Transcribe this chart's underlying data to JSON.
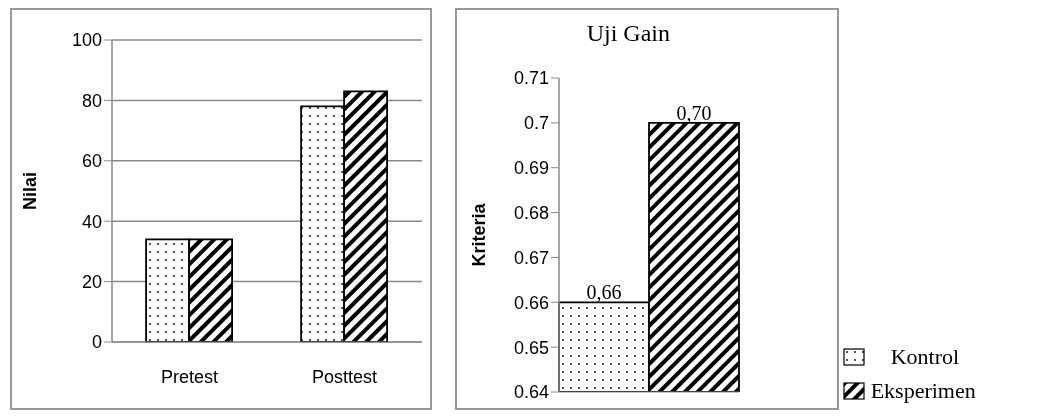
{
  "chart_data": [
    {
      "type": "bar",
      "ylabel": "Nilai",
      "categories": [
        "Pretest",
        "Posttest"
      ],
      "series": [
        {
          "color": "#000000",
          "values": [
            34,
            78
          ]
        },
        {
          "color": "#000000",
          "values": [
            34,
            83
          ]
        }
      ],
      "ylim": [
        0,
        100
      ],
      "yticks": [
        0,
        20,
        40,
        60,
        80,
        100
      ],
      "grid": "y",
      "legend": false
    },
    {
      "type": "bar",
      "title": "Uji Gain",
      "ylabel": "Kriteria",
      "categories": [
        null
      ],
      "series": [
        {
          "name": "Kontrol",
          "color": "#000000",
          "values": [
            0.66
          ],
          "value_labels": [
            "0,66"
          ]
        },
        {
          "name": "Eksperimen",
          "color": "#000000",
          "values": [
            0.7
          ],
          "value_labels": [
            "0,70"
          ]
        }
      ],
      "ylim": [
        0.64,
        0.71
      ],
      "yticks": [
        0.64,
        0.65,
        0.66,
        0.67,
        0.68,
        0.69,
        0.7,
        0.71
      ],
      "grid": false,
      "legend": "right"
    }
  ]
}
